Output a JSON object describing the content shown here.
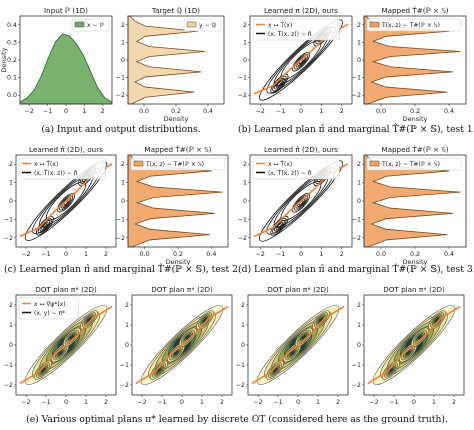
{
  "figure": {
    "captions": [
      "(a) Input and output distributions.",
      "(b) Learned plan π̂ and marginal T̂#(ℙ × 𝕊), test 1.",
      "(c) Learned plan π̂ and marginal T̂#(ℙ × 𝕊), test 2.",
      "(d) Learned plan π̂ and marginal T̂#(ℙ × 𝕊), test 3.",
      "(e) Various optimal plans π* learned by discrete OT (considered here as the ground truth)."
    ]
  },
  "chart_data": [
    {
      "id": "a-input",
      "type": "area",
      "title": "Input ℙ (1D)",
      "xlabel": "",
      "ylabel": "Density",
      "legend": [
        "x ∼ ℙ"
      ],
      "legend_position": "top-right",
      "xlim": [
        -2.6,
        2.6
      ],
      "ylim": [
        0,
        0.44
      ],
      "xticks": [
        "−2",
        "−1",
        "0",
        "1",
        "2"
      ],
      "yticks": [
        "0.0",
        "0.1",
        "0.2",
        "0.3",
        "0.4"
      ],
      "grid": false,
      "color": "#6aaa5f",
      "x": [
        -2.6,
        -2.2,
        -1.8,
        -1.4,
        -1.0,
        -0.6,
        -0.2,
        0.2,
        0.6,
        1.0,
        1.4,
        1.8,
        2.2,
        2.6
      ],
      "values": [
        0.01,
        0.03,
        0.07,
        0.14,
        0.23,
        0.31,
        0.35,
        0.34,
        0.3,
        0.24,
        0.16,
        0.08,
        0.03,
        0.01
      ]
    },
    {
      "id": "a-target",
      "type": "area",
      "orientation": "horizontal",
      "title": "Target ℚ (1D)",
      "xlabel": "Density",
      "ylabel": "",
      "legend": [
        "y ∼ ℚ"
      ],
      "legend_position": "top-right",
      "xlim": [
        0,
        0.55
      ],
      "ylim": [
        -2.6,
        2.6
      ],
      "xticks": [
        "0.0",
        "0.2",
        "0.4"
      ],
      "yticks": [
        "−2",
        "−1",
        "0",
        "1",
        "2"
      ],
      "grid": false,
      "color": "#f2d4a4",
      "y": [
        -2.6,
        -2.2,
        -1.9,
        -1.6,
        -1.3,
        -1.0,
        -0.7,
        -0.4,
        -0.1,
        0.2,
        0.5,
        0.8,
        1.1,
        1.4,
        1.7,
        2.0,
        2.3,
        2.6
      ],
      "values": [
        0.02,
        0.1,
        0.38,
        0.1,
        0.04,
        0.1,
        0.42,
        0.12,
        0.05,
        0.12,
        0.44,
        0.12,
        0.05,
        0.1,
        0.4,
        0.1,
        0.04,
        0.01
      ]
    },
    {
      "id": "b-plan",
      "type": "contour",
      "title": "Learned π (2D), ours",
      "legend": [
        "x ↦ T(x)",
        "(x, T̂(x, z)) ∼ π̂"
      ],
      "legend_position": "top-left",
      "xlim": [
        -2.6,
        2.6
      ],
      "ylim": [
        -2.6,
        2.6
      ],
      "xticks": [
        "−2",
        "−1",
        "0",
        "1",
        "2"
      ],
      "yticks": [
        "−2",
        "−1",
        "0",
        "1",
        "2"
      ],
      "map_curve": [
        [
          -2.4,
          -2.0
        ],
        [
          -1.4,
          -1.5
        ],
        [
          -0.6,
          -0.6
        ],
        [
          0.0,
          0.0
        ],
        [
          0.6,
          0.6
        ],
        [
          1.4,
          1.5
        ],
        [
          2.4,
          2.1
        ]
      ],
      "clusters": [
        [
          -1.1,
          -1.4
        ],
        [
          0.0,
          -0.1
        ],
        [
          1.1,
          1.4
        ]
      ]
    },
    {
      "id": "b-marginal",
      "type": "area",
      "orientation": "horizontal",
      "title": "Mapped T̂#(ℙ × 𝕊)",
      "legend": [
        "T(x, z) ∼ T#(ℙ × 𝕊)"
      ],
      "legend_position": "top-left",
      "xlabel": "Density",
      "xlim": [
        0,
        0.55
      ],
      "ylim": [
        -2.6,
        2.6
      ],
      "xticks": [
        "0.0",
        "0.2",
        "0.4"
      ],
      "yticks": [
        "−2",
        "−1",
        "0",
        "1",
        "2"
      ],
      "color": "#f0a160",
      "y": [
        -2.6,
        -2.2,
        -1.9,
        -1.6,
        -1.3,
        -1.0,
        -0.7,
        -0.4,
        -0.1,
        0.2,
        0.5,
        0.8,
        1.1,
        1.4,
        1.7,
        2.0,
        2.3,
        2.6
      ],
      "values": [
        0.02,
        0.12,
        0.45,
        0.12,
        0.04,
        0.12,
        0.48,
        0.14,
        0.05,
        0.14,
        0.52,
        0.14,
        0.05,
        0.12,
        0.46,
        0.12,
        0.04,
        0.01
      ]
    },
    {
      "id": "c-plan",
      "type": "contour",
      "title": "Learned π̂ (2D), ours",
      "legend": [
        "x ↦ T̂(x)",
        "(x, T̂(x, z)) ∼ π̂"
      ],
      "legend_position": "top-left",
      "xlim": [
        -2.6,
        2.6
      ],
      "ylim": [
        -2.6,
        2.6
      ],
      "xticks": [
        "−2",
        "−1",
        "0",
        "1",
        "2"
      ],
      "yticks": [
        "−2",
        "−1",
        "0",
        "1",
        "2"
      ],
      "map_curve": [
        [
          -2.4,
          -2.0
        ],
        [
          -1.4,
          -1.5
        ],
        [
          -0.6,
          -0.6
        ],
        [
          0.0,
          0.0
        ],
        [
          0.6,
          0.6
        ],
        [
          1.4,
          1.5
        ],
        [
          2.4,
          2.1
        ]
      ],
      "clusters": [
        [
          -1.1,
          -1.4
        ],
        [
          0.0,
          -0.1
        ],
        [
          1.1,
          1.4
        ]
      ]
    },
    {
      "id": "c-marginal",
      "type": "area",
      "orientation": "horizontal",
      "title": "Mapped T̂#(ℙ × 𝕊)",
      "legend": [
        "T(x, z) ∼ T#(ℙ × 𝕊)"
      ],
      "legend_position": "top-left",
      "xlabel": "Density",
      "xlim": [
        0,
        0.55
      ],
      "ylim": [
        -2.6,
        2.6
      ],
      "xticks": [
        "0.0",
        "0.2",
        "0.4"
      ],
      "yticks": [
        "−2",
        "−1",
        "0",
        "1",
        "2"
      ],
      "color": "#f0a160",
      "y": [
        -2.6,
        -2.2,
        -1.9,
        -1.6,
        -1.3,
        -1.0,
        -0.7,
        -0.4,
        -0.1,
        0.2,
        0.5,
        0.8,
        1.1,
        1.4,
        1.7,
        2.0,
        2.3,
        2.6
      ],
      "values": [
        0.02,
        0.12,
        0.45,
        0.12,
        0.04,
        0.12,
        0.48,
        0.14,
        0.05,
        0.14,
        0.52,
        0.14,
        0.05,
        0.12,
        0.46,
        0.12,
        0.04,
        0.01
      ]
    },
    {
      "id": "d-plan",
      "type": "contour",
      "title": "Learned π̂ (2D), ours",
      "legend": [
        "x ↦ T̂(x)",
        "(x, T̂(x, z)) ∼ π̂"
      ],
      "legend_position": "top-left",
      "xlim": [
        -2.6,
        2.6
      ],
      "ylim": [
        -2.6,
        2.6
      ],
      "xticks": [
        "−2",
        "−1",
        "0",
        "1",
        "2"
      ],
      "yticks": [
        "−2",
        "−1",
        "0",
        "1",
        "2"
      ],
      "map_curve": [
        [
          -2.4,
          -2.0
        ],
        [
          -1.4,
          -1.5
        ],
        [
          -0.6,
          -0.6
        ],
        [
          0.0,
          0.0
        ],
        [
          0.6,
          0.6
        ],
        [
          1.4,
          1.5
        ],
        [
          2.4,
          2.1
        ]
      ],
      "clusters": [
        [
          -1.1,
          -1.4
        ],
        [
          0.0,
          -0.1
        ],
        [
          1.1,
          1.4
        ]
      ]
    },
    {
      "id": "d-marginal",
      "type": "area",
      "orientation": "horizontal",
      "title": "Mapped T̂#(ℙ × 𝕊)",
      "legend": [
        "T(x, z) ∼ T#(ℙ × 𝕊)"
      ],
      "legend_position": "top-left",
      "xlabel": "Density",
      "xlim": [
        0,
        0.55
      ],
      "ylim": [
        -2.6,
        2.6
      ],
      "xticks": [
        "0.0",
        "0.2",
        "0.4"
      ],
      "yticks": [
        "−2",
        "−1",
        "0",
        "1",
        "2"
      ],
      "color": "#f0a160",
      "y": [
        -2.6,
        -2.2,
        -1.9,
        -1.6,
        -1.3,
        -1.0,
        -0.7,
        -0.4,
        -0.1,
        0.2,
        0.5,
        0.8,
        1.1,
        1.4,
        1.7,
        2.0,
        2.3,
        2.6
      ],
      "values": [
        0.02,
        0.12,
        0.45,
        0.12,
        0.04,
        0.12,
        0.48,
        0.14,
        0.05,
        0.14,
        0.52,
        0.14,
        0.05,
        0.12,
        0.46,
        0.12,
        0.04,
        0.01
      ]
    },
    {
      "id": "e-dot-1",
      "type": "contour",
      "title": "DOT plan π* (2D)",
      "legend": [
        "x ↦ ∇ψ*(x)",
        "(x, y) ∼ π*"
      ],
      "legend_position": "top-left",
      "xlim": [
        -2.6,
        2.6
      ],
      "ylim": [
        -2.6,
        2.6
      ],
      "xticks": [
        "−2",
        "−1",
        "0",
        "1",
        "2"
      ],
      "yticks": [
        "−2",
        "−1",
        "0",
        "1",
        "2"
      ],
      "filled": true,
      "map_curve": [
        [
          -2.4,
          -2.0
        ],
        [
          -1.4,
          -1.4
        ],
        [
          -0.6,
          -0.5
        ],
        [
          0.0,
          0.0
        ],
        [
          0.6,
          0.5
        ],
        [
          1.4,
          1.4
        ],
        [
          2.4,
          2.0
        ]
      ],
      "clusters": [
        [
          -1.2,
          -1.3
        ],
        [
          -0.3,
          -0.4
        ],
        [
          0.3,
          0.4
        ],
        [
          1.2,
          1.3
        ]
      ]
    },
    {
      "id": "e-dot-2",
      "type": "contour",
      "title": "DOT plan π* (2D)",
      "xlim": [
        -2.6,
        2.6
      ],
      "ylim": [
        -2.6,
        2.6
      ],
      "xticks": [
        "−2",
        "−1",
        "0",
        "1",
        "2"
      ],
      "yticks": [
        "−2",
        "−1",
        "0",
        "1",
        "2"
      ],
      "filled": true,
      "map_curve": [
        [
          -2.4,
          -2.0
        ],
        [
          -1.4,
          -1.4
        ],
        [
          -0.6,
          -0.5
        ],
        [
          0.0,
          0.0
        ],
        [
          0.6,
          0.5
        ],
        [
          1.4,
          1.4
        ],
        [
          2.4,
          2.0
        ]
      ],
      "clusters": [
        [
          -1.2,
          -1.3
        ],
        [
          -0.3,
          -0.4
        ],
        [
          0.3,
          0.4
        ],
        [
          1.2,
          1.3
        ]
      ]
    },
    {
      "id": "e-dot-3",
      "type": "contour",
      "title": "DOT plan π* (2D)",
      "xlim": [
        -2.6,
        2.6
      ],
      "ylim": [
        -2.6,
        2.6
      ],
      "xticks": [
        "−2",
        "−1",
        "0",
        "1",
        "2"
      ],
      "yticks": [
        "−2",
        "−1",
        "0",
        "1",
        "2"
      ],
      "filled": true,
      "map_curve": [
        [
          -2.4,
          -2.0
        ],
        [
          -1.4,
          -1.4
        ],
        [
          -0.6,
          -0.5
        ],
        [
          0.0,
          0.0
        ],
        [
          0.6,
          0.5
        ],
        [
          1.4,
          1.4
        ],
        [
          2.4,
          2.0
        ]
      ],
      "clusters": [
        [
          -1.2,
          -1.3
        ],
        [
          -0.3,
          -0.4
        ],
        [
          0.3,
          0.4
        ],
        [
          1.2,
          1.3
        ]
      ]
    },
    {
      "id": "e-dot-4",
      "type": "contour",
      "title": "DOT plan π* (2D)",
      "xlim": [
        -2.6,
        2.6
      ],
      "ylim": [
        -2.6,
        2.6
      ],
      "xticks": [
        "−2",
        "−1",
        "0",
        "1",
        "2"
      ],
      "yticks": [
        "−2",
        "−1",
        "0",
        "1",
        "2"
      ],
      "filled": true,
      "map_curve": [
        [
          -2.4,
          -2.0
        ],
        [
          -1.4,
          -1.4
        ],
        [
          -0.6,
          -0.5
        ],
        [
          0.0,
          0.0
        ],
        [
          0.6,
          0.5
        ],
        [
          1.4,
          1.4
        ],
        [
          2.4,
          2.0
        ]
      ],
      "clusters": [
        [
          -1.2,
          -1.3
        ],
        [
          -0.3,
          -0.4
        ],
        [
          0.3,
          0.4
        ],
        [
          1.2,
          1.3
        ]
      ]
    }
  ]
}
